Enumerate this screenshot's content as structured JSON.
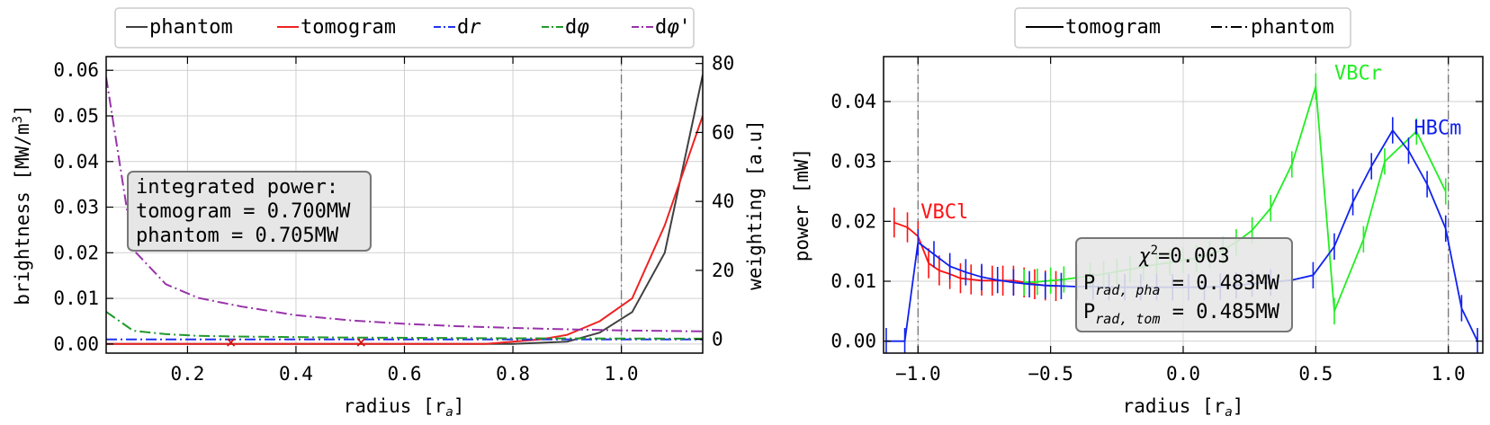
{
  "chart_data": [
    {
      "type": "line",
      "xlabel": "radius [r",
      "xlabel_sub": "a",
      "xlabel_end": "]",
      "ylabel": "brightness [MW/m",
      "ylabel_sup": "3",
      "ylabel_end": "]",
      "y2label": "weighting [a.u]",
      "xlim": [
        0.05,
        1.15
      ],
      "ylim": [
        -0.002,
        0.063
      ],
      "y2lim": [
        -4,
        82
      ],
      "xticks": [
        "0.2",
        "0.4",
        "0.6",
        "0.8",
        "1.0"
      ],
      "xtick_values": [
        0.2,
        0.4,
        0.6,
        0.8,
        1.0
      ],
      "yticks": [
        "0.00",
        "0.01",
        "0.02",
        "0.03",
        "0.04",
        "0.05",
        "0.06"
      ],
      "ytick_values": [
        0,
        0.01,
        0.02,
        0.03,
        0.04,
        0.05,
        0.06
      ],
      "y2ticks": [
        "0",
        "20",
        "40",
        "60",
        "80"
      ],
      "y2tick_values": [
        0,
        20,
        40,
        60,
        80
      ],
      "grid": true,
      "legend_position": "top, outside",
      "vline_x": 1.0,
      "annotation": [
        "integrated power:",
        "tomogram = 0.700MW",
        "phantom = 0.705MW"
      ],
      "series": [
        {
          "name": "phantom",
          "color": "#404040",
          "dash": "solid",
          "axis": "left",
          "x": [
            0.05,
            0.8,
            0.9,
            0.96,
            1.02,
            1.08,
            1.15
          ],
          "y": [
            0.0,
            0.0,
            0.0005,
            0.0025,
            0.007,
            0.02,
            0.059
          ]
        },
        {
          "name": "tomogram",
          "color": "#ee2222",
          "dash": "solid",
          "axis": "left",
          "x": [
            0.05,
            0.75,
            0.85,
            0.9,
            0.96,
            1.02,
            1.08,
            1.15
          ],
          "y": [
            0.0,
            0.0,
            0.001,
            0.002,
            0.005,
            0.01,
            0.026,
            0.05
          ]
        },
        {
          "name": "d",
          "italic": "r",
          "color": "#2233ee",
          "dash": "dashdot",
          "axis": "right",
          "x": [
            0.05,
            1.15
          ],
          "y": [
            0.0,
            0.0
          ]
        },
        {
          "name": "d",
          "italic": "φ",
          "color": "#22992a",
          "dash": "dashdot",
          "axis": "right",
          "x": [
            0.05,
            0.1,
            0.16,
            0.22,
            0.3,
            0.5,
            0.8,
            1.15
          ],
          "y": [
            8,
            2.5,
            1.5,
            1.0,
            0.8,
            0.5,
            0.3,
            0.2
          ]
        },
        {
          "name": "d",
          "italic": "φ",
          "suffix": "'",
          "color": "#9933aa",
          "dash": "dashdot",
          "axis": "right",
          "x": [
            0.05,
            0.1,
            0.16,
            0.22,
            0.3,
            0.4,
            0.5,
            0.6,
            0.7,
            0.8,
            0.9,
            1.0,
            1.15
          ],
          "y": [
            76,
            26,
            16,
            12,
            9.5,
            7,
            5.5,
            4.5,
            3.8,
            3.3,
            2.9,
            2.6,
            2.3
          ]
        }
      ],
      "markers": {
        "symbol": "×",
        "color": "#cc1111",
        "x": [
          0.28,
          0.52
        ],
        "y": [
          0.0005,
          0.0005
        ]
      }
    },
    {
      "type": "line",
      "xlabel": "radius [r",
      "xlabel_sub": "a",
      "xlabel_end": "]",
      "ylabel": "power [mW]",
      "xlim": [
        -1.13,
        1.13
      ],
      "ylim": [
        -0.002,
        0.0475
      ],
      "xticks": [
        "−1.0",
        "−0.5",
        "0.0",
        "0.5",
        "1.0"
      ],
      "xtick_values": [
        -1.0,
        -0.5,
        0.0,
        0.5,
        1.0
      ],
      "yticks": [
        "0.00",
        "0.01",
        "0.02",
        "0.03",
        "0.04"
      ],
      "ytick_values": [
        0,
        0.01,
        0.02,
        0.03,
        0.04
      ],
      "grid": true,
      "legend_position": "top, outside",
      "legend": [
        {
          "name": "tomogram",
          "dash": "solid"
        },
        {
          "name": "phantom",
          "dash": "dashdot"
        }
      ],
      "vlines_x": [
        -1.0,
        1.0
      ],
      "annotation": {
        "chi": "χ",
        "chi_sup": "2",
        "chi_value": "=0.003",
        "line2_p": "P",
        "line2_sub": "rad, pha",
        "line2_value": " = 0.483MW",
        "line3_p": "P",
        "line3_sub": "rad, tom",
        "line3_value": " = 0.485MW"
      },
      "series": [
        {
          "name": "VBCl",
          "color": "#ff1111",
          "x": [
            -1.09,
            -1.04,
            -1.0,
            -0.96,
            -0.92,
            -0.88,
            -0.84,
            -0.8,
            -0.76,
            -0.72,
            -0.68,
            -0.64,
            -0.6,
            -0.56,
            -0.52,
            -0.48
          ],
          "y": [
            0.0198,
            0.019,
            0.0175,
            0.013,
            0.0118,
            0.0112,
            0.0105,
            0.0103,
            0.0101,
            0.0101,
            0.0101,
            0.0101,
            0.0098,
            0.0095,
            0.0093,
            0.0092
          ],
          "err": 0.0025,
          "label_x": -0.99,
          "label_y": 0.0205
        },
        {
          "name": "VBCr",
          "color": "#22ee22",
          "x": [
            -0.6,
            -0.55,
            -0.5,
            -0.45,
            -0.4,
            -0.35,
            -0.3,
            -0.25,
            -0.2,
            -0.15,
            -0.1,
            -0.05,
            0.0,
            0.05,
            0.1,
            0.15,
            0.2,
            0.26,
            0.33,
            0.41,
            0.5,
            0.57,
            0.68,
            0.76,
            0.88,
            0.99
          ],
          "y": [
            0.0098,
            0.0099,
            0.0101,
            0.0103,
            0.0106,
            0.0109,
            0.0112,
            0.0116,
            0.012,
            0.0124,
            0.0128,
            0.0131,
            0.0135,
            0.0138,
            0.0145,
            0.0152,
            0.0165,
            0.0185,
            0.0222,
            0.0295,
            0.0425,
            0.005,
            0.017,
            0.03,
            0.035,
            0.025
          ],
          "err": 0.0022,
          "label_x": 0.57,
          "label_y": 0.0437
        },
        {
          "name": "HBCm",
          "color": "#1122ee",
          "x": [
            -1.12,
            -1.05,
            -1.0,
            -0.94,
            -0.88,
            -0.82,
            -0.76,
            -0.7,
            -0.64,
            -0.58,
            -0.52,
            -0.46,
            -0.4,
            -0.34,
            -0.28,
            -0.22,
            -0.16,
            -0.1,
            -0.04,
            0.02,
            0.08,
            0.14,
            0.2,
            0.26,
            0.33,
            0.41,
            0.49,
            0.57,
            0.64,
            0.71,
            0.79,
            0.85,
            0.92,
            0.99,
            1.05,
            1.11
          ],
          "y": [
            0.0,
            0.0,
            0.0165,
            0.0145,
            0.0125,
            0.0115,
            0.0107,
            0.0102,
            0.0098,
            0.0095,
            0.0093,
            0.0092,
            0.0091,
            0.0091,
            0.009,
            0.009,
            0.009,
            0.009,
            0.009,
            0.009,
            0.009,
            0.0091,
            0.0093,
            0.0096,
            0.0098,
            0.0102,
            0.011,
            0.0158,
            0.0232,
            0.0292,
            0.0352,
            0.0318,
            0.0262,
            0.0188,
            0.0055,
            0.0
          ],
          "err": 0.0022,
          "label_x": 0.87,
          "label_y": 0.0345
        }
      ]
    }
  ]
}
